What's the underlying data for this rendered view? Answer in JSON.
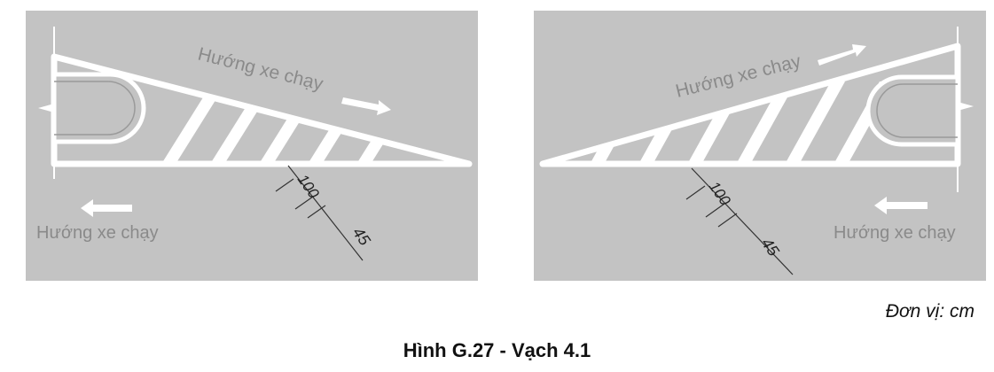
{
  "left_panel": {
    "direction_label_top": "Hướng xe chạy",
    "direction_label_bottom": "Hướng xe chạy",
    "dimension_stripe": "100",
    "dimension_angle": "45"
  },
  "right_panel": {
    "direction_label_top": "Hướng xe chạy",
    "direction_label_bottom": "Hướng xe chạy",
    "dimension_stripe": "100",
    "dimension_angle": "45"
  },
  "units_label": "Đơn vị: cm",
  "figure_caption": "Hình G.27 - Vạch 4.1",
  "colors": {
    "road": "#c3c3c3",
    "marking": "#ffffff",
    "text": "#8a8a8a"
  }
}
